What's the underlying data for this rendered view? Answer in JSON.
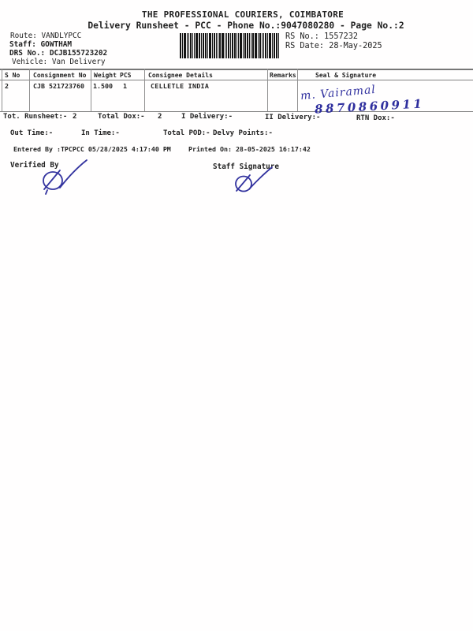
{
  "doc": {
    "title": "THE PROFESSIONAL COURIERS, COIMBATORE",
    "subtitle": "Delivery Runsheet - PCC - Phone No.:9047080280 - Page No.:2"
  },
  "meta": {
    "route_label": "Route:",
    "route_value": "VANDLYPCC",
    "staff_label": "Staff:",
    "staff_value": "GOWTHAM",
    "drs_label": "DRS No.:",
    "drs_value": "DCJB155723202",
    "vehicle_label": "Vehicle:",
    "vehicle_value": "Van Delivery",
    "rs_no_label": "RS No.:",
    "rs_no_value": "1557232",
    "rs_date_label": "RS Date:",
    "rs_date_value": "28-May-2025"
  },
  "table": {
    "headers": {
      "s_no": "S No",
      "consignment_no": "Consignment No",
      "weight": "Weight",
      "pcs": "PCS",
      "consignee": "Consignee Details",
      "remarks": "Remarks",
      "seal": "Seal & Signature"
    },
    "rows": [
      {
        "s_no": "2",
        "consignment_no": "CJB 521723760",
        "weight": "1.500",
        "pcs": "1",
        "consignee": "CELLETLE INDIA",
        "remarks": "",
        "seal_handwritten_name": "m. Vairamal",
        "seal_handwritten_phone": "8870860911"
      }
    ]
  },
  "totals": {
    "runsheet_label": "Tot. Runsheet:-",
    "runsheet_value": "2",
    "total_dox_label": "Total Dox:-",
    "total_dox_value": "2",
    "i_delivery_label": "I Delivery:-",
    "ii_delivery_label": "II Delivery:-",
    "rtn_dox_label": "RTN Dox:-",
    "out_time_label": "Out Time:-",
    "in_time_label": "In Time:-",
    "total_pod_label": "Total POD:-",
    "delvy_points_label": "Delvy Points:-"
  },
  "footer": {
    "entered_by": "Entered By :TPCPCC 05/28/2025 4:17:40 PM",
    "printed_on": "Printed On: 28-05-2025 16:17:42",
    "verified_by_label": "Verified By",
    "staff_signature_label": "Staff Signature"
  },
  "colors": {
    "ink_blue": "#2f2f9e",
    "text": "#222222",
    "line_gray": "#8f8f8f"
  }
}
